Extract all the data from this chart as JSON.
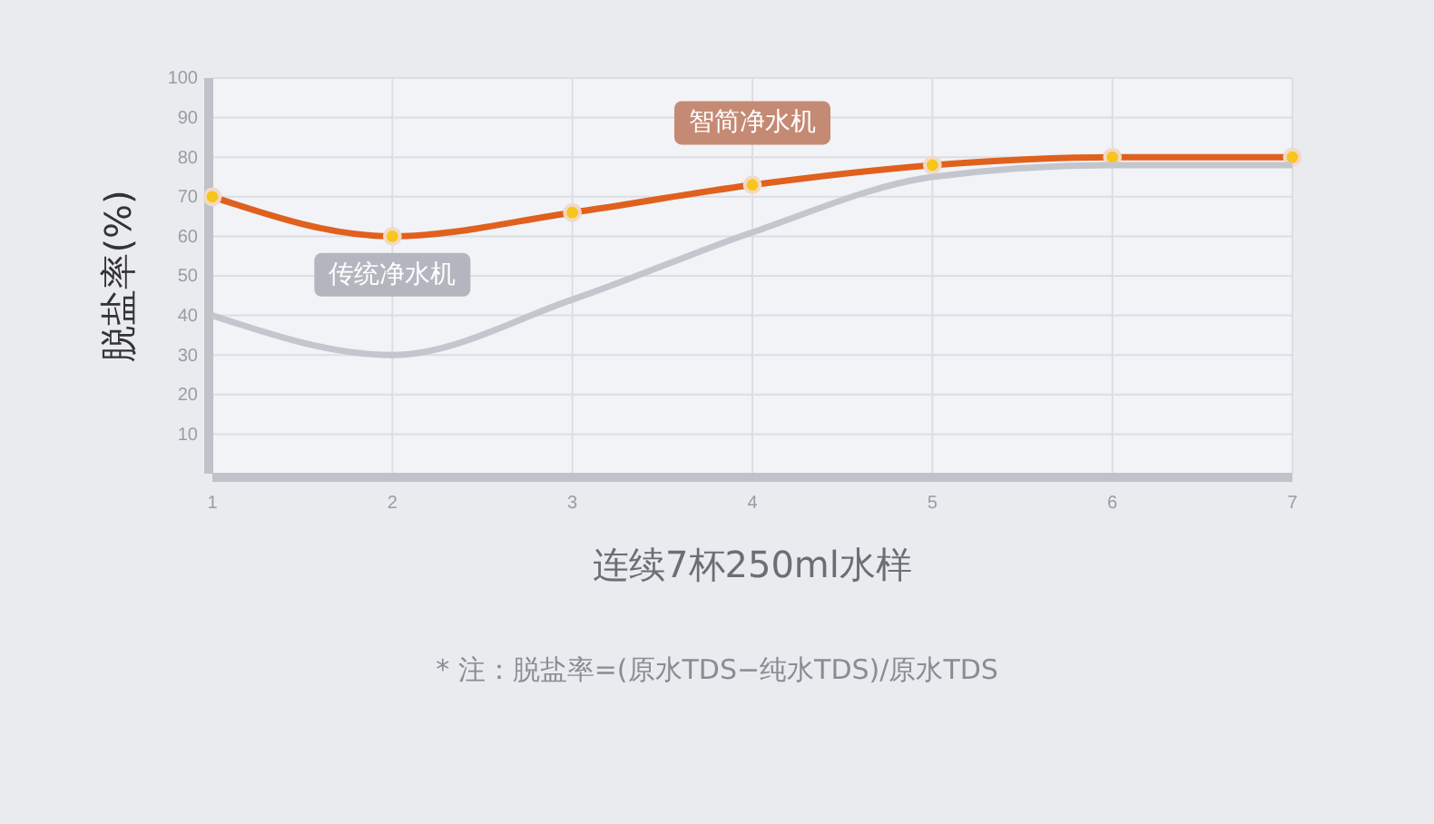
{
  "chart_data": {
    "type": "line",
    "xlabel": "连续7杯250ml水样",
    "ylabel": "脱盐率(%)",
    "x": [
      1,
      2,
      3,
      4,
      5,
      6,
      7
    ],
    "xlim": [
      1,
      7
    ],
    "xticks": [
      1,
      2,
      3,
      4,
      5,
      6,
      7
    ],
    "ylim": [
      0,
      100
    ],
    "yticks": [
      10,
      20,
      30,
      40,
      50,
      60,
      70,
      80,
      90,
      100
    ],
    "series": [
      {
        "name": "智简净水机",
        "color": "#e0601e",
        "values": [
          70,
          60,
          66,
          73,
          78,
          80,
          80
        ],
        "marker": "circle"
      },
      {
        "name": "传统净水机",
        "color": "#c4c6ce",
        "values": [
          40,
          30,
          44,
          61,
          75,
          78,
          78
        ],
        "marker": "none"
      }
    ],
    "grid": true,
    "line_style": "solid",
    "annotations": [
      "* 注：脱盐率=(原水TDS−纯水TDS)/原水TDS"
    ]
  }
}
